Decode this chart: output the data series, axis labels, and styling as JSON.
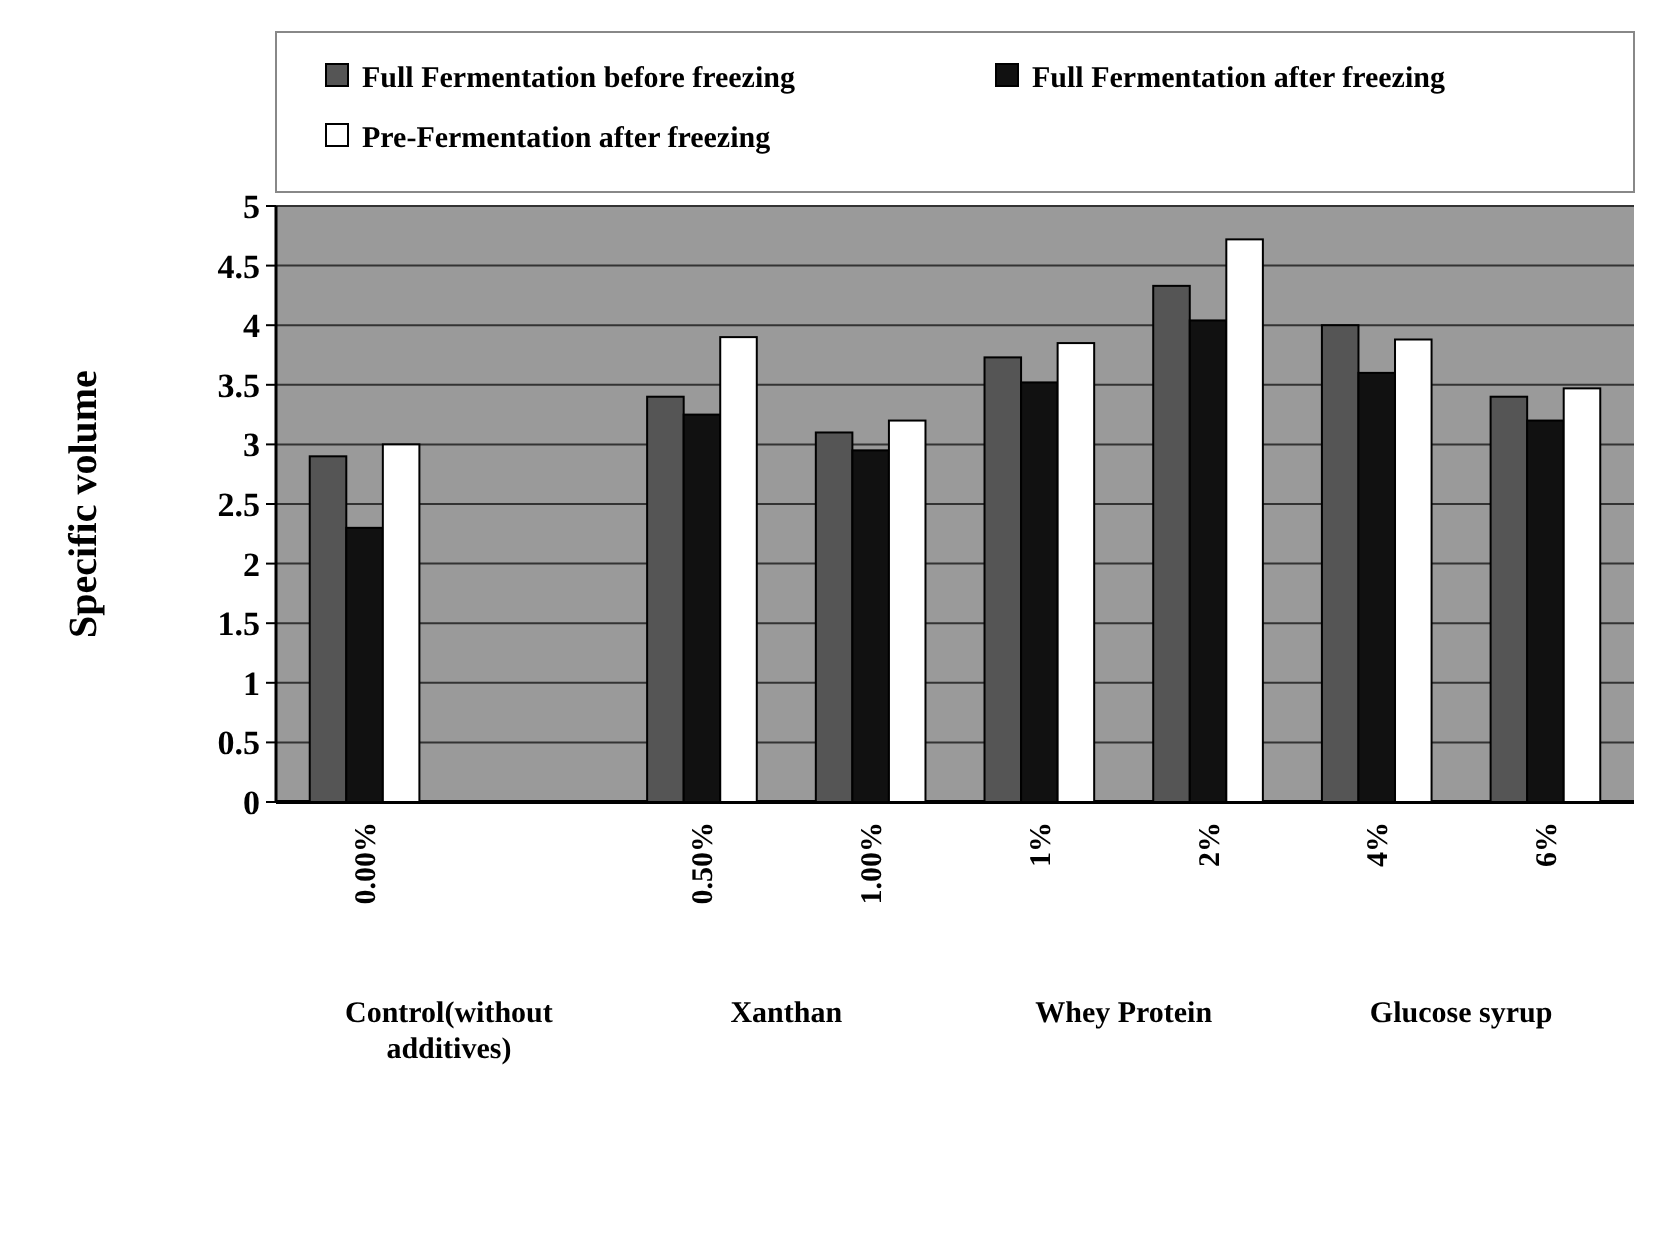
{
  "chart_data": {
    "type": "bar",
    "ylabel": "Specific volume",
    "categories": [
      "0.00%",
      null,
      "0.50%",
      "1.00%",
      "1%",
      "2%",
      "4%",
      "6%"
    ],
    "series": [
      {
        "name": "Full Fermentation before freezing",
        "color": "#555555",
        "values": [
          2.9,
          null,
          3.4,
          3.1,
          3.73,
          4.33,
          4.0,
          3.4
        ]
      },
      {
        "name": "Full Fermentation after freezing",
        "color": "#111111",
        "values": [
          2.3,
          null,
          3.25,
          2.95,
          3.52,
          4.04,
          3.6,
          3.2
        ]
      },
      {
        "name": "Pre-Fermentation after freezing",
        "color": "#ffffff",
        "values": [
          3.0,
          null,
          3.9,
          3.2,
          3.85,
          4.72,
          3.88,
          3.47
        ]
      }
    ],
    "annotations": [
      "Control(without additives)",
      "Xanthan",
      "Whey Protein",
      "Glucose syrup"
    ],
    "ylim": [
      0,
      5
    ],
    "yticks": [
      0,
      0.5,
      1,
      1.5,
      2,
      2.5,
      3,
      3.5,
      4,
      4.5,
      5
    ],
    "grid": "y",
    "legend": "top"
  }
}
